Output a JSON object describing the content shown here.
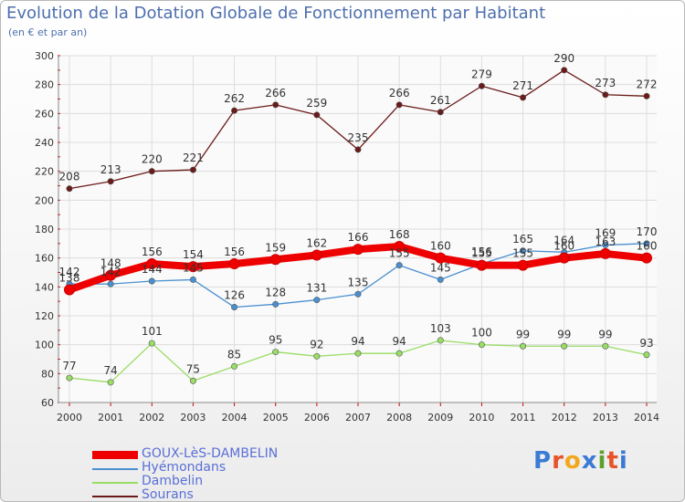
{
  "title": "Evolution de la Dotation Globale de Fonctionnement par Habitant",
  "subtitle": "(en € et par an)",
  "logo": {
    "text": "Proxiti",
    "colors": [
      "#3a7bd5",
      "#e8532b",
      "#f2a81d",
      "#3a7bd5",
      "#5aa02c",
      "#e8532b",
      "#3a7bd5"
    ]
  },
  "chart_data": {
    "type": "line",
    "title": "Evolution de la Dotation Globale de Fonctionnement par Habitant",
    "subtitle": "(en € et par an)",
    "xlabel": "",
    "ylabel": "",
    "ylim": [
      60,
      300
    ],
    "yticks": [
      60,
      80,
      100,
      120,
      140,
      160,
      180,
      200,
      220,
      240,
      260,
      280,
      300
    ],
    "grid": true,
    "legend": "bottom-left",
    "x": [
      "2000",
      "2001",
      "2002",
      "2003",
      "2004",
      "2005",
      "2006",
      "2007",
      "2008",
      "2009",
      "2010",
      "2011",
      "2012",
      "2013",
      "2014"
    ],
    "series": [
      {
        "name": "GOUX-LèS-DAMBELIN",
        "color": "#ee0000",
        "values": [
          138,
          148,
          156,
          154,
          156,
          159,
          162,
          166,
          168,
          160,
          155,
          155,
          160,
          163,
          160
        ]
      },
      {
        "name": "Hyémondans",
        "color": "#4a90d0",
        "values": [
          142,
          142,
          144,
          145,
          126,
          128,
          131,
          135,
          155,
          145,
          156,
          165,
          164,
          169,
          170
        ]
      },
      {
        "name": "Dambelin",
        "color": "#99dd66",
        "values": [
          77,
          74,
          101,
          75,
          85,
          95,
          92,
          94,
          94,
          103,
          100,
          99,
          99,
          99,
          93
        ]
      },
      {
        "name": "Sourans",
        "color": "#6b1a1a",
        "values": [
          208,
          213,
          220,
          221,
          262,
          266,
          259,
          235,
          266,
          261,
          279,
          271,
          290,
          273,
          272
        ]
      }
    ]
  }
}
